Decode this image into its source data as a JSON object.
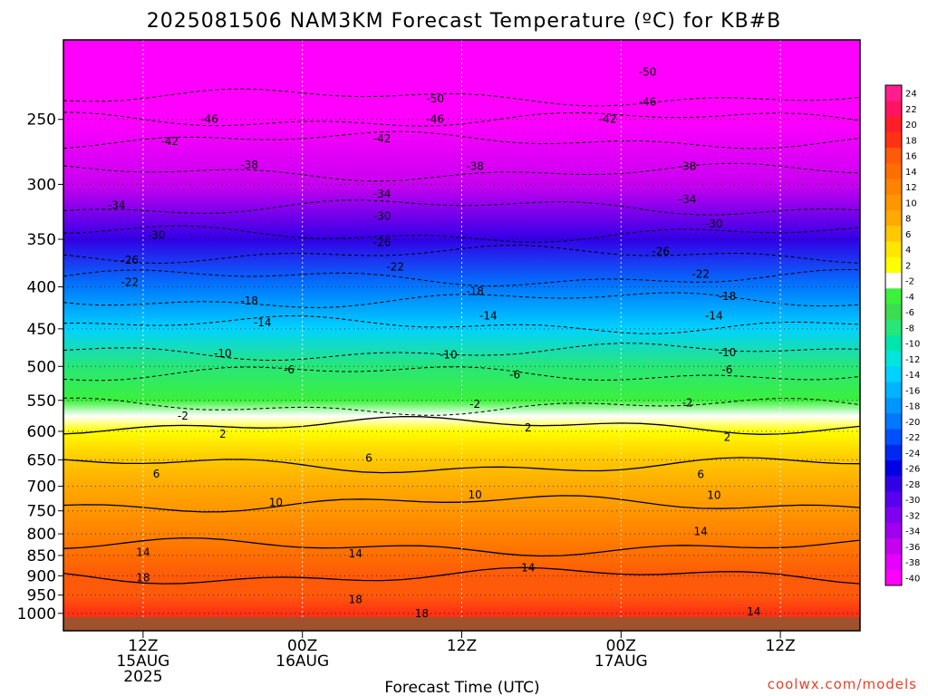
{
  "chart_data": {
    "type": "heatmap",
    "title": "2025081506 NAM3KM Forecast Temperature (ºC) for KB#B",
    "xlabel": "Forecast Time (UTC)",
    "ylabel": "",
    "credit": "coolwx.com/models",
    "y_scale": "log-pressure",
    "ylim": [
      1050,
      200
    ],
    "xlim_hours": [
      0,
      60
    ],
    "grid": true,
    "legend_position": "right",
    "y_ticks": [
      250,
      300,
      350,
      400,
      450,
      500,
      550,
      600,
      650,
      700,
      750,
      800,
      850,
      900,
      950,
      1000
    ],
    "x_ticks": [
      {
        "hour": 6,
        "lines": [
          "12Z",
          "15AUG",
          "2025"
        ]
      },
      {
        "hour": 18,
        "lines": [
          "00Z",
          "16AUG"
        ]
      },
      {
        "hour": 30,
        "lines": [
          "12Z"
        ]
      },
      {
        "hour": 42,
        "lines": [
          "00Z",
          "17AUG"
        ]
      },
      {
        "hour": 54,
        "lines": [
          "12Z"
        ]
      }
    ],
    "colorbar": {
      "labels": [
        "24",
        "22",
        "20",
        "18",
        "16",
        "14",
        "12",
        "10",
        "8",
        "6",
        "4",
        "2",
        "-2",
        "-4",
        "-6",
        "-8",
        "-10",
        "-12",
        "-14",
        "-16",
        "-18",
        "-20",
        "-22",
        "-24",
        "-26",
        "-28",
        "-30",
        "-32",
        "-34",
        "-36",
        "-38",
        "-40"
      ],
      "colors": [
        "#ff1e8c",
        "#ff1464",
        "#ff1e28",
        "#ff3214",
        "#ff5a0a",
        "#ff6e00",
        "#ff8200",
        "#ff9600",
        "#ffaa00",
        "#ffc800",
        "#ffe600",
        "#ffff00",
        "#ffffff",
        "#3cf03c",
        "#3cdc50",
        "#28e678",
        "#00e6aa",
        "#00e6dc",
        "#00d2ff",
        "#00b4ff",
        "#0096ff",
        "#0078ff",
        "#0050ff",
        "#0028f0",
        "#0000e6",
        "#3200e6",
        "#5a00f0",
        "#8200f0",
        "#a000f0",
        "#c800f0",
        "#e600ff",
        "#ff00ff"
      ]
    },
    "temperature_profile": [
      {
        "p": 1000,
        "t": 19
      },
      {
        "p": 950,
        "t": 17
      },
      {
        "p": 900,
        "t": 16
      },
      {
        "p": 850,
        "t": 14
      },
      {
        "p": 800,
        "t": 12.5
      },
      {
        "p": 750,
        "t": 10.5
      },
      {
        "p": 700,
        "t": 8.5
      },
      {
        "p": 650,
        "t": 6
      },
      {
        "p": 600,
        "t": 2.5
      },
      {
        "p": 575,
        "t": 0
      },
      {
        "p": 550,
        "t": -3
      },
      {
        "p": 500,
        "t": -7
      },
      {
        "p": 450,
        "t": -13
      },
      {
        "p": 400,
        "t": -19
      },
      {
        "p": 350,
        "t": -27
      },
      {
        "p": 300,
        "t": -35
      },
      {
        "p": 250,
        "t": -45
      },
      {
        "p": 200,
        "t": -53
      }
    ],
    "contours": [
      {
        "level": "18",
        "p": 900,
        "labels": [
          {
            "hour": 6,
            "p": 905
          },
          {
            "hour": 22,
            "p": 962
          },
          {
            "hour": 27,
            "p": 1000
          }
        ]
      },
      {
        "level": "14",
        "p": 830,
        "labels": [
          {
            "hour": 6,
            "p": 843
          },
          {
            "hour": 22,
            "p": 846
          },
          {
            "hour": 35,
            "p": 880
          },
          {
            "hour": 48,
            "p": 795
          },
          {
            "hour": 52,
            "p": 995
          }
        ]
      },
      {
        "level": "10",
        "p": 735,
        "labels": [
          {
            "hour": 16,
            "p": 733
          },
          {
            "hour": 31,
            "p": 717
          },
          {
            "hour": 49,
            "p": 718
          }
        ]
      },
      {
        "level": "6",
        "p": 660,
        "labels": [
          {
            "hour": 7,
            "p": 676
          },
          {
            "hour": 23,
            "p": 647
          },
          {
            "hour": 48,
            "p": 677
          }
        ]
      },
      {
        "level": "2",
        "p": 590,
        "labels": [
          {
            "hour": 12,
            "p": 605
          },
          {
            "hour": 35,
            "p": 594
          },
          {
            "hour": 50,
            "p": 610
          }
        ]
      },
      {
        "level": "-2",
        "p": 560,
        "labels": [
          {
            "hour": 9,
            "p": 575
          },
          {
            "hour": 31,
            "p": 556
          },
          {
            "hour": 47,
            "p": 554
          }
        ]
      },
      {
        "level": "-6",
        "p": 510,
        "labels": [
          {
            "hour": 17,
            "p": 505
          },
          {
            "hour": 34,
            "p": 512
          },
          {
            "hour": 50,
            "p": 505
          }
        ]
      },
      {
        "level": "-10",
        "p": 480,
        "labels": [
          {
            "hour": 12,
            "p": 482
          },
          {
            "hour": 29,
            "p": 484
          },
          {
            "hour": 50,
            "p": 481
          }
        ]
      },
      {
        "level": "-14",
        "p": 445,
        "labels": [
          {
            "hour": 15,
            "p": 442
          },
          {
            "hour": 32,
            "p": 434
          },
          {
            "hour": 49,
            "p": 434
          }
        ]
      },
      {
        "level": "-18",
        "p": 415,
        "labels": [
          {
            "hour": 14,
            "p": 416
          },
          {
            "hour": 31,
            "p": 405
          },
          {
            "hour": 50,
            "p": 411
          }
        ]
      },
      {
        "level": "-22",
        "p": 390,
        "labels": [
          {
            "hour": 5,
            "p": 395
          },
          {
            "hour": 25,
            "p": 378
          },
          {
            "hour": 48,
            "p": 386
          }
        ]
      },
      {
        "level": "-26",
        "p": 365,
        "labels": [
          {
            "hour": 5,
            "p": 371
          },
          {
            "hour": 24,
            "p": 353
          },
          {
            "hour": 45,
            "p": 362
          }
        ]
      },
      {
        "level": "-30",
        "p": 345,
        "labels": [
          {
            "hour": 7,
            "p": 346
          },
          {
            "hour": 24,
            "p": 328
          },
          {
            "hour": 49,
            "p": 335
          }
        ]
      },
      {
        "level": "-34",
        "p": 320,
        "labels": [
          {
            "hour": 4,
            "p": 318
          },
          {
            "hour": 24,
            "p": 308
          },
          {
            "hour": 47,
            "p": 313
          }
        ]
      },
      {
        "level": "-38",
        "p": 290,
        "labels": [
          {
            "hour": 14,
            "p": 284
          },
          {
            "hour": 31,
            "p": 285
          },
          {
            "hour": 47,
            "p": 285
          }
        ]
      },
      {
        "level": "-42",
        "p": 265,
        "labels": [
          {
            "hour": 8,
            "p": 266
          },
          {
            "hour": 24,
            "p": 264
          },
          {
            "hour": 41,
            "p": 250
          }
        ]
      },
      {
        "level": "-46",
        "p": 250,
        "labels": [
          {
            "hour": 11,
            "p": 250
          },
          {
            "hour": 28,
            "p": 250
          },
          {
            "hour": 44,
            "p": 238
          }
        ]
      },
      {
        "level": "-50",
        "p": 235,
        "labels": [
          {
            "hour": 28,
            "p": 236
          },
          {
            "hour": 44,
            "p": 219
          }
        ]
      }
    ]
  }
}
